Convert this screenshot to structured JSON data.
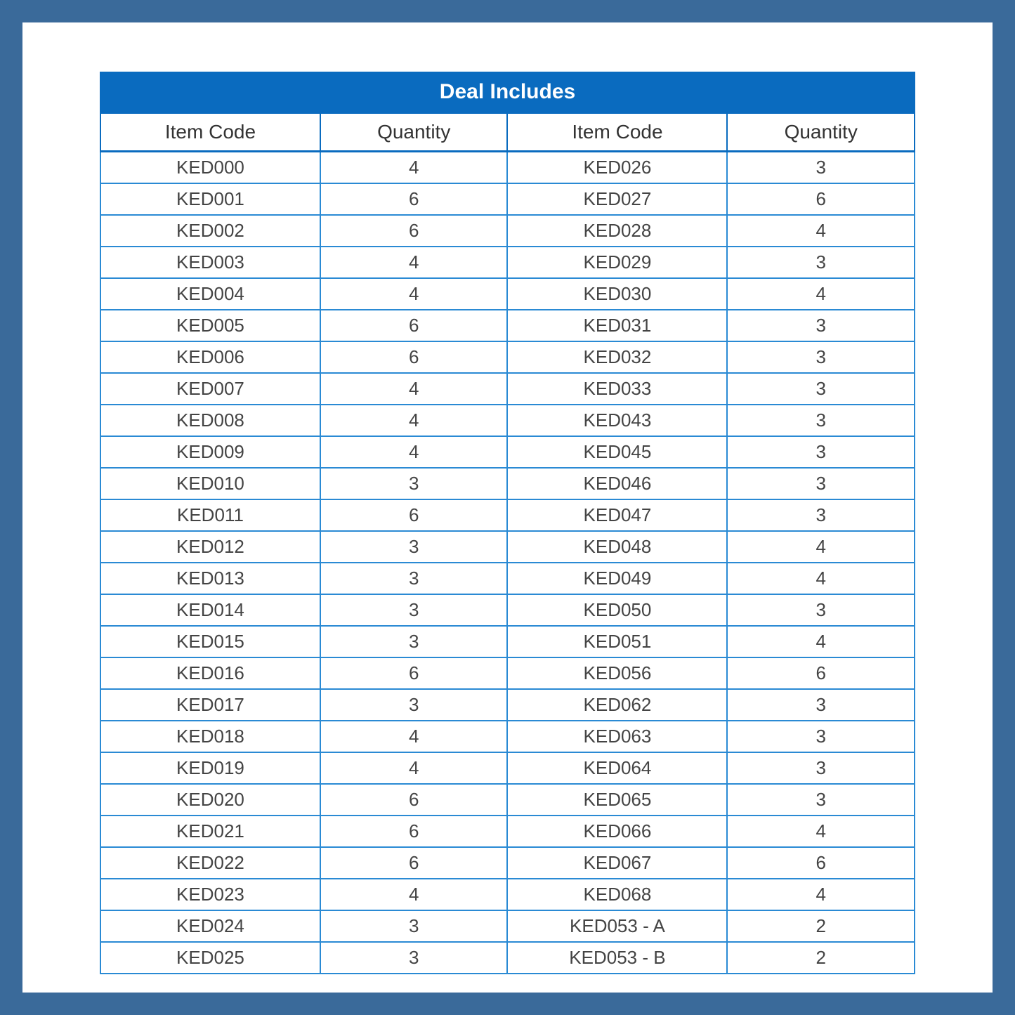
{
  "table": {
    "title": "Deal Includes",
    "columns": [
      "Item Code",
      "Quantity",
      "Item Code",
      "Quantity"
    ],
    "rows": [
      [
        "KED000",
        "4",
        "KED026",
        "3"
      ],
      [
        "KED001",
        "6",
        "KED027",
        "6"
      ],
      [
        "KED002",
        "6",
        "KED028",
        "4"
      ],
      [
        "KED003",
        "4",
        "KED029",
        "3"
      ],
      [
        "KED004",
        "4",
        "KED030",
        "4"
      ],
      [
        "KED005",
        "6",
        "KED031",
        "3"
      ],
      [
        "KED006",
        "6",
        "KED032",
        "3"
      ],
      [
        "KED007",
        "4",
        "KED033",
        "3"
      ],
      [
        "KED008",
        "4",
        "KED043",
        "3"
      ],
      [
        "KED009",
        "4",
        "KED045",
        "3"
      ],
      [
        "KED010",
        "3",
        "KED046",
        "3"
      ],
      [
        "KED011",
        "6",
        "KED047",
        "3"
      ],
      [
        "KED012",
        "3",
        "KED048",
        "4"
      ],
      [
        "KED013",
        "3",
        "KED049",
        "4"
      ],
      [
        "KED014",
        "3",
        "KED050",
        "3"
      ],
      [
        "KED015",
        "3",
        "KED051",
        "4"
      ],
      [
        "KED016",
        "6",
        "KED056",
        "6"
      ],
      [
        "KED017",
        "3",
        "KED062",
        "3"
      ],
      [
        "KED018",
        "4",
        "KED063",
        "3"
      ],
      [
        "KED019",
        "4",
        "KED064",
        "3"
      ],
      [
        "KED020",
        "6",
        "KED065",
        "3"
      ],
      [
        "KED021",
        "6",
        "KED066",
        "4"
      ],
      [
        "KED022",
        "6",
        "KED067",
        "6"
      ],
      [
        "KED023",
        "4",
        "KED068",
        "4"
      ],
      [
        "KED024",
        "3",
        "KED053 - A",
        "2"
      ],
      [
        "KED025",
        "3",
        "KED053 - B",
        "2"
      ]
    ],
    "colors": {
      "outer_background": "#3a6a9a",
      "page_background": "#ffffff",
      "header_background": "#0a6bbf",
      "header_text": "#ffffff",
      "border": "#2a8ad4",
      "header_border": "#0a6bbf",
      "cell_text": "#444444"
    },
    "typography": {
      "title_fontsize": 30,
      "colhead_fontsize": 28,
      "cell_fontsize": 26,
      "font_family": "Segoe UI, Arial, sans-serif"
    },
    "layout": {
      "column_widths_pct": [
        27,
        23,
        27,
        23
      ]
    }
  }
}
